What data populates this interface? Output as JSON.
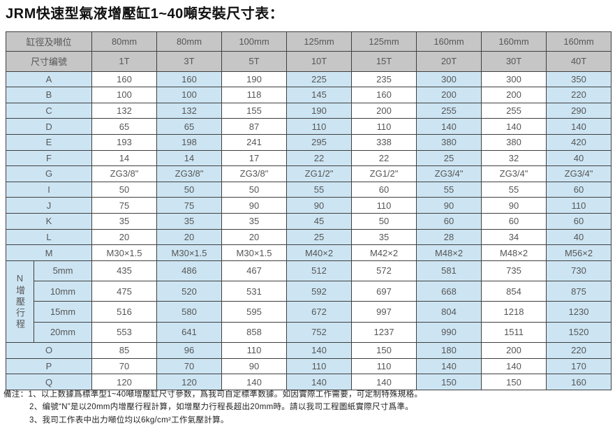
{
  "title": "JRM快速型氣液增壓缸1~40噸安裝尺寸表：",
  "colors": {
    "header_bg": "#c6c6c6",
    "label_bg": "#cde5f3",
    "alt_col_bg": "#cde5f3",
    "white_col_bg": "#ffffff",
    "border": "#3f3f3f"
  },
  "table": {
    "header_rows": [
      {
        "label": "缸徑及噸位",
        "values": [
          "80mm",
          "80mm",
          "100mm",
          "125mm",
          "125mm",
          "160mm",
          "160mm",
          "160mm"
        ]
      },
      {
        "label": "尺寸编號",
        "values": [
          "1T",
          "3T",
          "5T",
          "10T",
          "15T",
          "20T",
          "30T",
          "40T"
        ]
      }
    ],
    "rows": [
      {
        "label": "A",
        "values": [
          "160",
          "160",
          "190",
          "225",
          "235",
          "300",
          "300",
          "350"
        ]
      },
      {
        "label": "B",
        "values": [
          "100",
          "100",
          "118",
          "145",
          "160",
          "200",
          "200",
          "220"
        ]
      },
      {
        "label": "C",
        "values": [
          "132",
          "132",
          "155",
          "190",
          "200",
          "255",
          "255",
          "290"
        ]
      },
      {
        "label": "D",
        "values": [
          "65",
          "65",
          "87",
          "110",
          "110",
          "140",
          "140",
          "140"
        ]
      },
      {
        "label": "E",
        "values": [
          "193",
          "198",
          "241",
          "295",
          "338",
          "380",
          "380",
          "420"
        ]
      },
      {
        "label": "F",
        "values": [
          "14",
          "14",
          "17",
          "22",
          "22",
          "25",
          "32",
          "40"
        ]
      },
      {
        "label": "G",
        "values": [
          "ZG3/8\"",
          "ZG3/8\"",
          "ZG3/8\"",
          "ZG1/2\"",
          "ZG1/2\"",
          "ZG3/4\"",
          "ZG3/4\"",
          "ZG3/4\""
        ]
      },
      {
        "label": "I",
        "values": [
          "50",
          "50",
          "50",
          "55",
          "60",
          "55",
          "55",
          "60"
        ]
      },
      {
        "label": "J",
        "values": [
          "75",
          "75",
          "90",
          "90",
          "110",
          "90",
          "90",
          "110"
        ]
      },
      {
        "label": "K",
        "values": [
          "35",
          "35",
          "35",
          "45",
          "50",
          "60",
          "60",
          "60"
        ]
      },
      {
        "label": "L",
        "values": [
          "20",
          "20",
          "20",
          "25",
          "35",
          "28",
          "34",
          "40"
        ]
      },
      {
        "label": "M",
        "values": [
          "M30×1.5",
          "M30×1.5",
          "M30×1.5",
          "M40×2",
          "M42×2",
          "M48×2",
          "M48×2",
          "M56×2"
        ]
      }
    ],
    "n_section": {
      "label": "N增壓行程",
      "sub_rows": [
        {
          "label": "5mm",
          "values": [
            "435",
            "486",
            "467",
            "512",
            "572",
            "581",
            "735",
            "730"
          ]
        },
        {
          "label": "10mm",
          "values": [
            "475",
            "520",
            "531",
            "592",
            "697",
            "668",
            "854",
            "875"
          ]
        },
        {
          "label": "15mm",
          "values": [
            "516",
            "580",
            "595",
            "672",
            "997",
            "804",
            "1218",
            "1230"
          ]
        },
        {
          "label": "20mm",
          "values": [
            "553",
            "641",
            "858",
            "752",
            "1237",
            "990",
            "1511",
            "1520"
          ]
        }
      ]
    },
    "tail_rows": [
      {
        "label": "O",
        "values": [
          "85",
          "96",
          "110",
          "140",
          "150",
          "180",
          "200",
          "220"
        ]
      },
      {
        "label": "P",
        "values": [
          "70",
          "70",
          "90",
          "110",
          "110",
          "140",
          "140",
          "170"
        ]
      },
      {
        "label": "Q",
        "values": [
          "120",
          "120",
          "140",
          "140",
          "140",
          "150",
          "150",
          "160"
        ]
      }
    ]
  },
  "notes": {
    "prefix": "備注：",
    "items": [
      "1、以上数據爲標準型1~40噸增壓缸尺寸參数，爲我司自定標準数據。如因實際工作需要，可定制特殊規格。",
      "2、编號“N”是以20mm内增壓行程計算，如增壓力行程長超出20mm時。請以我司工程圖紙實際尺寸爲準。",
      "3、我司工作表中出力噸位均以6kg/cm²工作氣壓計算。"
    ]
  }
}
